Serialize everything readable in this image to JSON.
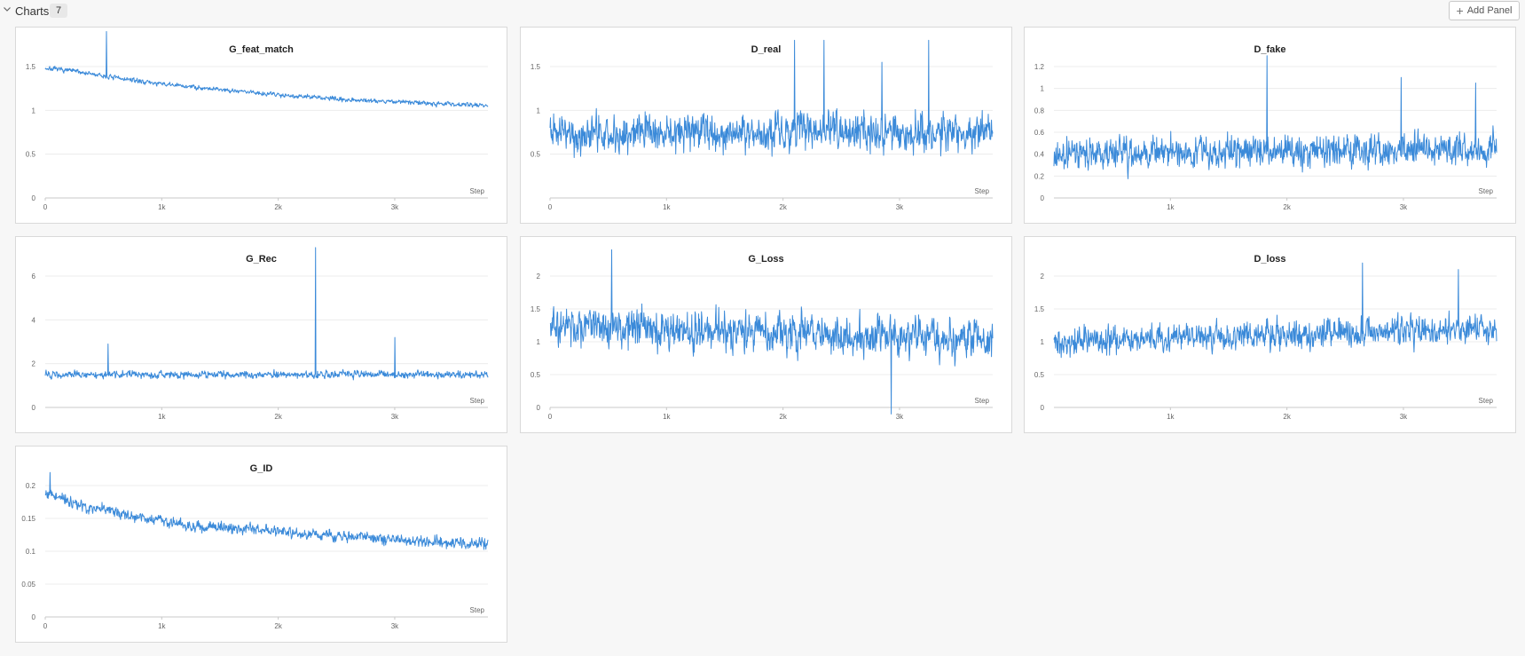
{
  "header": {
    "title": "Charts",
    "count": "7",
    "add_panel_label": "Add Panel"
  },
  "colors": {
    "line": "#3b8ad9",
    "grid": "#ececec",
    "axis": "#c8c8c8",
    "tick_text": "#666666"
  },
  "chart_data": [
    {
      "type": "line",
      "title": "G_feat_match",
      "xlabel": "Step",
      "xlim": [
        0,
        3800
      ],
      "ylim": [
        0,
        1.5
      ],
      "xticks": [
        0,
        1000,
        2000,
        3000
      ],
      "xtick_labels": [
        "0",
        "1k",
        "2k",
        "3k"
      ],
      "yticks": [
        0,
        0.5,
        1,
        1.5
      ],
      "ytick_labels": [
        "0",
        "0.5",
        "1",
        "1.5"
      ],
      "series": [
        {
          "trend": [
            [
              0,
              1.48
            ],
            [
              250,
              1.45
            ],
            [
              500,
              1.39
            ],
            [
              1000,
              1.3
            ],
            [
              1500,
              1.24
            ],
            [
              2000,
              1.18
            ],
            [
              2500,
              1.13
            ],
            [
              3000,
              1.1
            ],
            [
              3500,
              1.07
            ],
            [
              3800,
              1.06
            ]
          ],
          "noise": 0.03,
          "spikes": [
            [
              525,
              1.9
            ]
          ]
        }
      ]
    },
    {
      "type": "line",
      "title": "D_real",
      "xlabel": "Step",
      "xlim": [
        0,
        3800
      ],
      "ylim": [
        0,
        1.5
      ],
      "xticks": [
        0,
        1000,
        2000,
        3000
      ],
      "xtick_labels": [
        "0",
        "1k",
        "2k",
        "3k"
      ],
      "yticks": [
        0.5,
        1,
        1.5
      ],
      "ytick_labels": [
        "0.5",
        "1",
        "1.5"
      ],
      "series": [
        {
          "trend": [
            [
              0,
              0.75
            ],
            [
              3800,
              0.75
            ]
          ],
          "noise": 0.25,
          "spikes": [
            [
              2100,
              1.8
            ],
            [
              2350,
              1.8
            ],
            [
              3250,
              1.8
            ],
            [
              2850,
              1.55
            ]
          ]
        }
      ]
    },
    {
      "type": "line",
      "title": "D_fake",
      "xlabel": "Step",
      "xlim": [
        0,
        3800
      ],
      "ylim": [
        0,
        1.2
      ],
      "xticks": [
        1000,
        2000,
        3000
      ],
      "xtick_labels": [
        "1k",
        "2k",
        "3k"
      ],
      "yticks": [
        0,
        0.2,
        0.4,
        0.6,
        0.8,
        1,
        1.2
      ],
      "ytick_labels": [
        "0",
        "0.2",
        "0.4",
        "0.6",
        "0.8",
        "1",
        "1.2"
      ],
      "series": [
        {
          "trend": [
            [
              0,
              0.4
            ],
            [
              3800,
              0.45
            ]
          ],
          "noise": 0.17,
          "spikes": [
            [
              1830,
              1.3
            ],
            [
              2980,
              1.1
            ],
            [
              3620,
              1.05
            ]
          ]
        }
      ]
    },
    {
      "type": "line",
      "title": "G_Rec",
      "xlabel": "Step",
      "xlim": [
        0,
        3800
      ],
      "ylim": [
        0,
        6
      ],
      "xticks": [
        1000,
        2000,
        3000
      ],
      "xtick_labels": [
        "1k",
        "2k",
        "3k"
      ],
      "yticks": [
        0,
        2,
        4,
        6
      ],
      "ytick_labels": [
        "0",
        "2",
        "4",
        "6"
      ],
      "series": [
        {
          "trend": [
            [
              0,
              1.5
            ],
            [
              3800,
              1.5
            ]
          ],
          "noise": 0.2,
          "spikes": [
            [
              2320,
              7.3
            ],
            [
              3000,
              3.2
            ],
            [
              540,
              2.9
            ]
          ]
        }
      ]
    },
    {
      "type": "line",
      "title": "G_Loss",
      "xlabel": "Step",
      "xlim": [
        0,
        3800
      ],
      "ylim": [
        0,
        2
      ],
      "xticks": [
        0,
        1000,
        2000,
        3000
      ],
      "xtick_labels": [
        "0",
        "1k",
        "2k",
        "3k"
      ],
      "yticks": [
        0,
        0.5,
        1,
        1.5,
        2
      ],
      "ytick_labels": [
        "0",
        "0.5",
        "1",
        "1.5",
        "2"
      ],
      "series": [
        {
          "trend": [
            [
              0,
              1.25
            ],
            [
              3800,
              1.05
            ]
          ],
          "noise": 0.35,
          "spikes": [
            [
              530,
              2.4
            ],
            [
              2930,
              -0.1
            ]
          ]
        }
      ]
    },
    {
      "type": "line",
      "title": "D_loss",
      "xlabel": "Step",
      "xlim": [
        0,
        3800
      ],
      "ylim": [
        0,
        2
      ],
      "xticks": [
        1000,
        2000,
        3000
      ],
      "xtick_labels": [
        "1k",
        "2k",
        "3k"
      ],
      "yticks": [
        0,
        0.5,
        1,
        1.5,
        2
      ],
      "ytick_labels": [
        "0",
        "0.5",
        "1",
        "1.5",
        "2"
      ],
      "series": [
        {
          "trend": [
            [
              0,
              1.0
            ],
            [
              3800,
              1.2
            ]
          ],
          "noise": 0.25,
          "spikes": [
            [
              2650,
              2.2
            ],
            [
              3470,
              2.1
            ]
          ]
        }
      ]
    },
    {
      "type": "line",
      "title": "G_ID",
      "xlabel": "Step",
      "xlim": [
        0,
        3800
      ],
      "ylim": [
        0,
        0.2
      ],
      "xticks": [
        0,
        1000,
        2000,
        3000
      ],
      "xtick_labels": [
        "0",
        "1k",
        "2k",
        "3k"
      ],
      "yticks": [
        0,
        0.05,
        0.1,
        0.15,
        0.2
      ],
      "ytick_labels": [
        "0",
        "0.05",
        "0.1",
        "0.15",
        "0.2"
      ],
      "series": [
        {
          "trend": [
            [
              0,
              0.19
            ],
            [
              300,
              0.17
            ],
            [
              700,
              0.155
            ],
            [
              1200,
              0.14
            ],
            [
              2000,
              0.13
            ],
            [
              2800,
              0.12
            ],
            [
              3800,
              0.11
            ]
          ],
          "noise": 0.01,
          "spikes": [
            [
              40,
              0.22
            ]
          ]
        }
      ]
    }
  ]
}
